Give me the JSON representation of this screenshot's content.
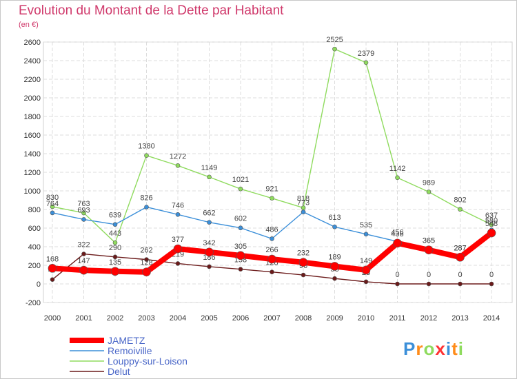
{
  "header": {
    "title": "Evolution du Montant de la Dette par Habitant",
    "unit": "(en €)"
  },
  "logo": {
    "text": "Proxiti"
  },
  "chart_data": {
    "type": "line",
    "title": "Evolution du Montant de la Dette par Habitant",
    "ylabel": "(en €)",
    "xlabel": "",
    "x": [
      "2000",
      "2001",
      "2002",
      "2003",
      "2004",
      "2005",
      "2006",
      "2007",
      "2008",
      "2009",
      "2010",
      "2011",
      "2012",
      "2013",
      "2014"
    ],
    "ylim": [
      -200,
      2600
    ],
    "yticks": [
      -200,
      0,
      200,
      400,
      600,
      800,
      1000,
      1200,
      1400,
      1600,
      1800,
      2000,
      2200,
      2400,
      2600
    ],
    "grid": true,
    "legend_position": "bottom-left",
    "series": [
      {
        "name": "Delut",
        "color": "#6b1a1a",
        "values": [
          47,
          322,
          290,
          262,
          219,
          186,
          158,
          128,
          96,
          58,
          23,
          0,
          0,
          0,
          0
        ],
        "labels": [
          "47",
          "322",
          "290",
          "262",
          "219",
          "186",
          "158",
          "128",
          "96",
          "58",
          "23",
          "0",
          "0",
          "0",
          "0"
        ]
      },
      {
        "name": "Louppy-sur-Loison",
        "color": "#8fdb5e",
        "values": [
          830,
          763,
          443,
          1380,
          1272,
          1149,
          1021,
          921,
          818,
          2525,
          2379,
          1142,
          989,
          802,
          637
        ],
        "labels": [
          "830",
          "763",
          "443",
          "1380",
          "1272",
          "1149",
          "1021",
          "921",
          "818",
          "2525",
          "2379",
          "1142",
          "989",
          "802",
          "637"
        ]
      },
      {
        "name": "Remoiville",
        "color": "#3b8fd9",
        "values": [
          764,
          693,
          639,
          826,
          746,
          662,
          602,
          486,
          773,
          613,
          535,
          456,
          365,
          287,
          580
        ],
        "labels": [
          "764",
          "693",
          "639",
          "826",
          "746",
          "662",
          "602",
          "486",
          "773",
          "613",
          "535",
          "456",
          "365",
          "287",
          "580"
        ]
      },
      {
        "name": "JAMETZ",
        "color": "#ff0000",
        "values": [
          168,
          147,
          135,
          128,
          377,
          342,
          305,
          266,
          232,
          189,
          149,
          438,
          365,
          287,
          548
        ],
        "labels": [
          "168",
          "147",
          "135",
          "128",
          "377",
          "342",
          "305",
          "266",
          "232",
          "189",
          "149",
          "438",
          "365",
          "287",
          "548"
        ]
      }
    ],
    "legend": [
      "JAMETZ",
      "Remoiville",
      "Louppy-sur-Loison",
      "Delut"
    ]
  }
}
